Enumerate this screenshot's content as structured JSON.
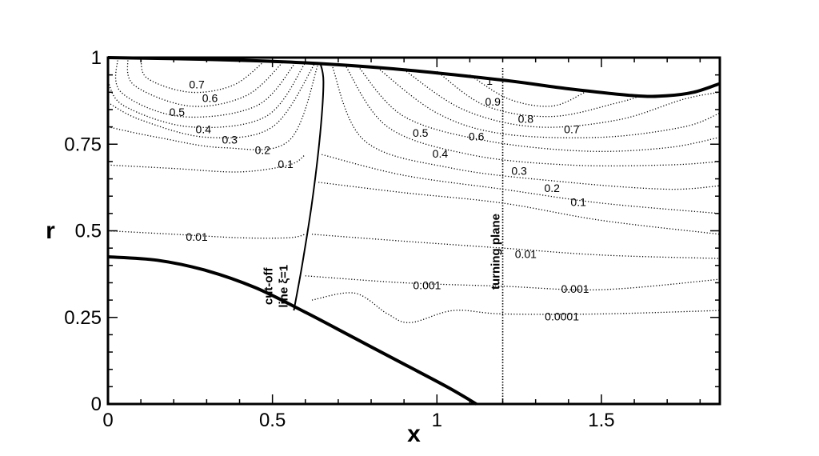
{
  "chart_data": {
    "type": "line",
    "title": "",
    "xlabel": "x",
    "ylabel": "r",
    "xlim": [
      0,
      1.86
    ],
    "ylim": [
      0,
      1
    ],
    "x_ticks": [
      {
        "value": 0,
        "label": "0"
      },
      {
        "value": 0.5,
        "label": "0.5"
      },
      {
        "value": 1,
        "label": "1"
      },
      {
        "value": 1.5,
        "label": "1.5"
      }
    ],
    "y_ticks": [
      {
        "value": 0,
        "label": "0"
      },
      {
        "value": 0.25,
        "label": "0.25"
      },
      {
        "value": 0.5,
        "label": "0.5"
      },
      {
        "value": 0.75,
        "label": "0.75"
      },
      {
        "value": 1,
        "label": "1"
      }
    ],
    "boundaries": {
      "outer_wall": [
        [
          0,
          1.0
        ],
        [
          0.3,
          0.995
        ],
        [
          0.6,
          0.985
        ],
        [
          0.9,
          0.965
        ],
        [
          1.2,
          0.935
        ],
        [
          1.4,
          0.91
        ],
        [
          1.6,
          0.89
        ],
        [
          1.7,
          0.89
        ],
        [
          1.78,
          0.9
        ],
        [
          1.86,
          0.925
        ]
      ],
      "inner_body": [
        [
          0,
          0.425
        ],
        [
          0.15,
          0.415
        ],
        [
          0.3,
          0.385
        ],
        [
          0.45,
          0.335
        ],
        [
          0.6,
          0.265
        ],
        [
          0.75,
          0.19
        ],
        [
          0.9,
          0.115
        ],
        [
          1.03,
          0.05
        ],
        [
          1.12,
          0.0
        ]
      ]
    },
    "cutoff_line": [
      [
        0.565,
        0.27
      ],
      [
        0.59,
        0.4
      ],
      [
        0.62,
        0.58
      ],
      [
        0.645,
        0.78
      ],
      [
        0.655,
        0.93
      ],
      [
        0.645,
        0.985
      ]
    ],
    "turning_plane_x": 1.2,
    "contours": [
      {
        "level": "0.7",
        "points": [
          [
            0.1,
            1.0
          ],
          [
            0.12,
            0.94
          ],
          [
            0.25,
            0.9
          ],
          [
            0.38,
            0.92
          ],
          [
            0.47,
            0.985
          ]
        ]
      },
      {
        "level": "0.6",
        "points": [
          [
            0.06,
            1.0
          ],
          [
            0.08,
            0.92
          ],
          [
            0.25,
            0.86
          ],
          [
            0.42,
            0.89
          ],
          [
            0.53,
            0.985
          ]
        ]
      },
      {
        "level": "0.5",
        "points": [
          [
            0.03,
            1.0
          ],
          [
            0.04,
            0.9
          ],
          [
            0.22,
            0.83
          ],
          [
            0.45,
            0.86
          ],
          [
            0.57,
            0.985
          ]
        ]
      },
      {
        "level": "0.4",
        "points": [
          [
            0.0,
            0.93
          ],
          [
            0.05,
            0.86
          ],
          [
            0.25,
            0.8
          ],
          [
            0.48,
            0.83
          ],
          [
            0.6,
            0.985
          ]
        ]
      },
      {
        "level": "0.3",
        "points": [
          [
            0.0,
            0.87
          ],
          [
            0.1,
            0.82
          ],
          [
            0.3,
            0.77
          ],
          [
            0.5,
            0.8
          ],
          [
            0.63,
            0.985
          ]
        ]
      },
      {
        "level": "0.2",
        "points": [
          [
            0.0,
            0.8
          ],
          [
            0.15,
            0.77
          ],
          [
            0.35,
            0.74
          ],
          [
            0.55,
            0.76
          ],
          [
            0.64,
            0.985
          ]
        ]
      },
      {
        "level": "0.1",
        "points": [
          [
            0.0,
            0.69
          ],
          [
            0.2,
            0.68
          ],
          [
            0.4,
            0.67
          ],
          [
            0.55,
            0.69
          ],
          [
            0.6,
            0.72
          ]
        ]
      },
      {
        "level": "0.01",
        "points": [
          [
            0.0,
            0.5
          ],
          [
            0.2,
            0.49
          ],
          [
            0.4,
            0.48
          ],
          [
            0.55,
            0.48
          ],
          [
            0.6,
            0.49
          ]
        ]
      },
      {
        "level": "0.9",
        "points": [
          [
            1.1,
            0.95
          ],
          [
            1.22,
            0.88
          ],
          [
            1.35,
            0.86
          ],
          [
            1.45,
            0.9
          ]
        ]
      },
      {
        "level": "0.8",
        "points": [
          [
            1.0,
            0.96
          ],
          [
            1.15,
            0.86
          ],
          [
            1.35,
            0.83
          ],
          [
            1.55,
            0.87
          ],
          [
            1.62,
            0.89
          ]
        ]
      },
      {
        "level": "0.7",
        "points": [
          [
            0.9,
            0.965
          ],
          [
            1.08,
            0.85
          ],
          [
            1.3,
            0.8
          ],
          [
            1.55,
            0.82
          ],
          [
            1.75,
            0.88
          ],
          [
            1.86,
            0.9
          ]
        ]
      },
      {
        "level": "0.6",
        "points": [
          [
            0.82,
            0.97
          ],
          [
            1.0,
            0.84
          ],
          [
            1.2,
            0.78
          ],
          [
            1.5,
            0.77
          ],
          [
            1.75,
            0.8
          ],
          [
            1.86,
            0.84
          ]
        ]
      },
      {
        "level": "0.5",
        "points": [
          [
            0.76,
            0.975
          ],
          [
            0.9,
            0.83
          ],
          [
            1.15,
            0.76
          ],
          [
            1.45,
            0.73
          ],
          [
            1.7,
            0.74
          ],
          [
            1.86,
            0.77
          ]
        ]
      },
      {
        "level": "0.4",
        "points": [
          [
            0.72,
            0.98
          ],
          [
            0.85,
            0.8
          ],
          [
            1.1,
            0.72
          ],
          [
            1.4,
            0.69
          ],
          [
            1.7,
            0.69
          ],
          [
            1.86,
            0.7
          ]
        ]
      },
      {
        "level": "0.3",
        "points": [
          [
            0.68,
            0.98
          ],
          [
            0.78,
            0.76
          ],
          [
            1.05,
            0.68
          ],
          [
            1.4,
            0.64
          ],
          [
            1.7,
            0.62
          ],
          [
            1.86,
            0.63
          ]
        ]
      },
      {
        "level": "0.2",
        "points": [
          [
            0.65,
            0.72
          ],
          [
            0.9,
            0.66
          ],
          [
            1.2,
            0.62
          ],
          [
            1.5,
            0.58
          ],
          [
            1.86,
            0.55
          ]
        ]
      },
      {
        "level": "0.1",
        "points": [
          [
            0.64,
            0.64
          ],
          [
            0.9,
            0.61
          ],
          [
            1.2,
            0.58
          ],
          [
            1.5,
            0.53
          ],
          [
            1.86,
            0.49
          ]
        ]
      },
      {
        "level": "0.01",
        "points": [
          [
            0.62,
            0.49
          ],
          [
            0.9,
            0.47
          ],
          [
            1.2,
            0.45
          ],
          [
            1.5,
            0.43
          ],
          [
            1.86,
            0.42
          ]
        ]
      },
      {
        "level": "0.001",
        "points": [
          [
            0.6,
            0.37
          ],
          [
            0.9,
            0.35
          ],
          [
            1.2,
            0.34
          ],
          [
            1.5,
            0.33
          ],
          [
            1.86,
            0.36
          ]
        ]
      },
      {
        "level": "0.0001",
        "points": [
          [
            0.62,
            0.3
          ],
          [
            0.75,
            0.32
          ],
          [
            0.85,
            0.26
          ],
          [
            0.92,
            0.235
          ],
          [
            1.05,
            0.27
          ],
          [
            1.2,
            0.26
          ],
          [
            1.5,
            0.26
          ],
          [
            1.86,
            0.27
          ]
        ]
      }
    ],
    "contour_labels": [
      {
        "text": "0.7",
        "x": 0.27,
        "y": 0.92
      },
      {
        "text": "0.6",
        "x": 0.31,
        "y": 0.88
      },
      {
        "text": "0.5",
        "x": 0.21,
        "y": 0.84
      },
      {
        "text": "0.4",
        "x": 0.29,
        "y": 0.79
      },
      {
        "text": "0.3",
        "x": 0.37,
        "y": 0.76
      },
      {
        "text": "0.2",
        "x": 0.47,
        "y": 0.73
      },
      {
        "text": "0.1",
        "x": 0.54,
        "y": 0.69
      },
      {
        "text": "0.01",
        "x": 0.27,
        "y": 0.48
      },
      {
        "text": "1",
        "x": 1.16,
        "y": 0.93
      },
      {
        "text": "0.9",
        "x": 1.17,
        "y": 0.87
      },
      {
        "text": "0.8",
        "x": 1.27,
        "y": 0.82
      },
      {
        "text": "0.7",
        "x": 1.41,
        "y": 0.79
      },
      {
        "text": "0.5",
        "x": 0.95,
        "y": 0.78
      },
      {
        "text": "0.6",
        "x": 1.12,
        "y": 0.77
      },
      {
        "text": "0.4",
        "x": 1.01,
        "y": 0.72
      },
      {
        "text": "0.3",
        "x": 1.25,
        "y": 0.67
      },
      {
        "text": "0.2",
        "x": 1.35,
        "y": 0.62
      },
      {
        "text": "0.1",
        "x": 1.43,
        "y": 0.58
      },
      {
        "text": "0.01",
        "x": 1.27,
        "y": 0.43
      },
      {
        "text": "0.001",
        "x": 0.97,
        "y": 0.34
      },
      {
        "text": "0.001",
        "x": 1.42,
        "y": 0.33
      },
      {
        "text": "0.0001",
        "x": 1.38,
        "y": 0.25
      }
    ],
    "annotations": {
      "cutoff_line1": "cut-off",
      "cutoff_line2": "line ξ=1",
      "turning_plane": "turning plane"
    }
  }
}
